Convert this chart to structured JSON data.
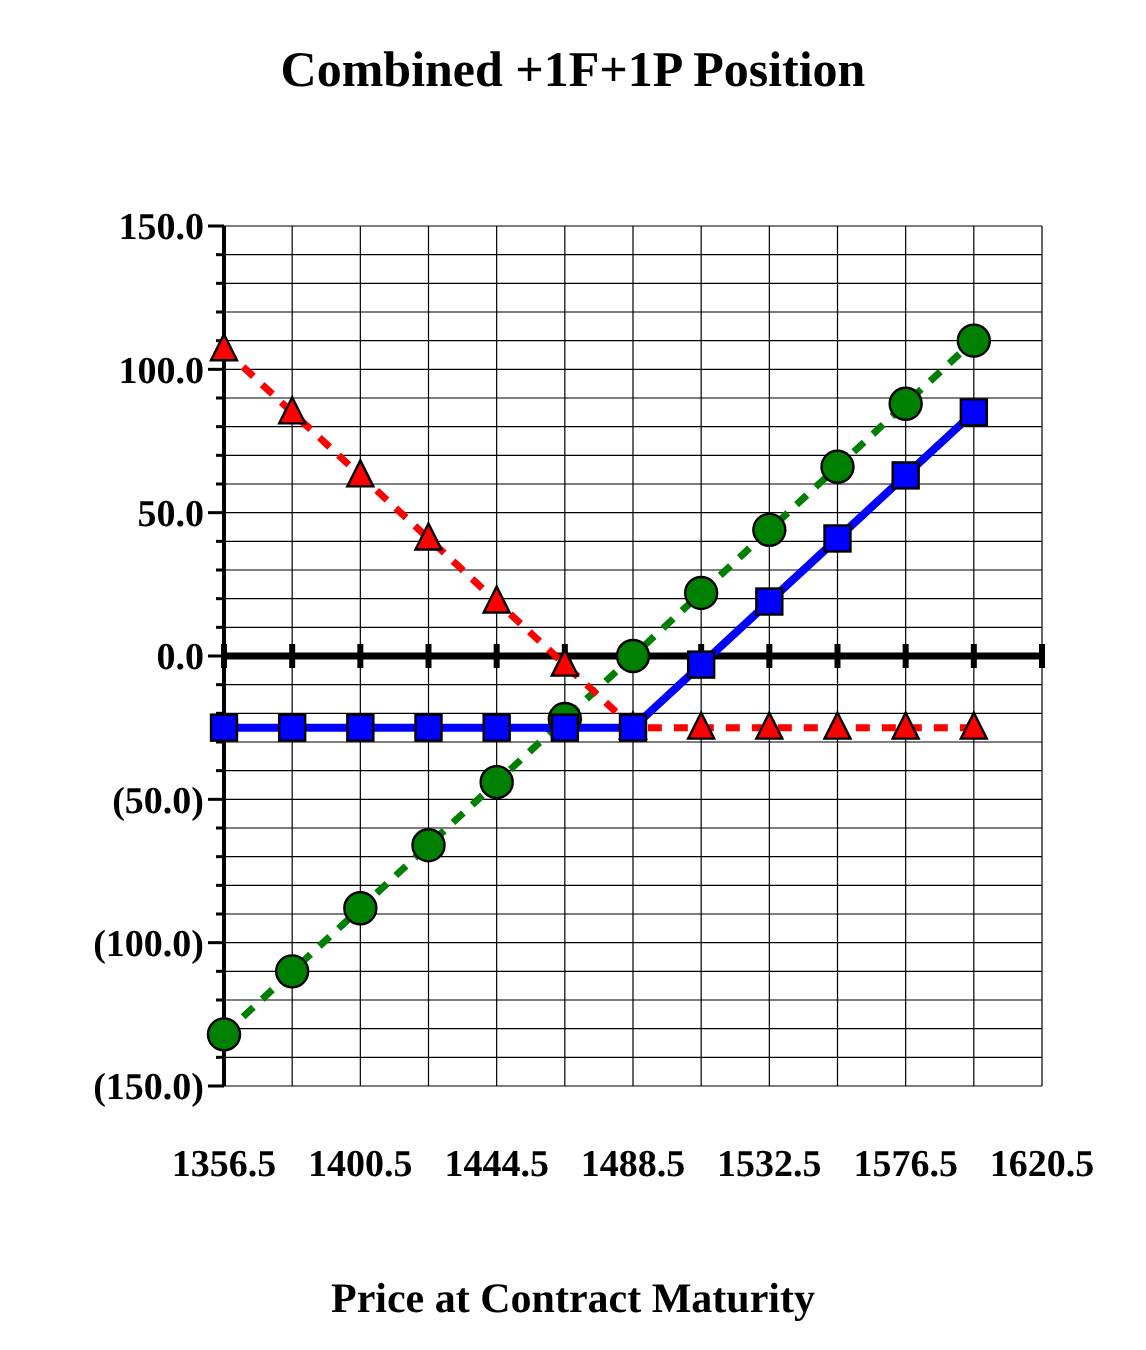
{
  "chart_data": {
    "type": "line",
    "title": "Combined +1F+1P Position",
    "xlabel": "Price at Contract Maturity",
    "xlim": [
      1356.5,
      1620.5
    ],
    "xticks": [
      1356.5,
      {
        "value": 1378.5,
        "label": null
      },
      1400.5,
      {
        "value": 1422.5,
        "label": null
      },
      1444.5,
      {
        "value": 1466.5,
        "label": null
      },
      1488.5,
      {
        "value": 1510.5,
        "label": null
      },
      1532.5,
      {
        "value": 1554.5,
        "label": null
      },
      1576.5,
      {
        "value": 1598.5,
        "label": null
      },
      1620.5
    ],
    "ylim": [
      -150,
      150
    ],
    "yticks": [
      {
        "value": -150,
        "label": "(150.0)"
      },
      {
        "value": -140,
        "label": null
      },
      {
        "value": -130,
        "label": null
      },
      {
        "value": -120,
        "label": null
      },
      {
        "value": -110,
        "label": null
      },
      {
        "value": -100,
        "label": "(100.0)"
      },
      {
        "value": -90,
        "label": null
      },
      {
        "value": -80,
        "label": null
      },
      {
        "value": -70,
        "label": null
      },
      {
        "value": -60,
        "label": null
      },
      {
        "value": -50,
        "label": "(50.0)"
      },
      {
        "value": -40,
        "label": null
      },
      {
        "value": -30,
        "label": null
      },
      {
        "value": -20,
        "label": null
      },
      {
        "value": -10,
        "label": null
      },
      {
        "value": 0,
        "label": "0.0"
      },
      {
        "value": 10,
        "label": null
      },
      {
        "value": 20,
        "label": null
      },
      {
        "value": 30,
        "label": null
      },
      {
        "value": 40,
        "label": null
      },
      {
        "value": 50,
        "label": "50.0"
      },
      {
        "value": 60,
        "label": null
      },
      {
        "value": 70,
        "label": null
      },
      {
        "value": 80,
        "label": null
      },
      {
        "value": 90,
        "label": null
      },
      {
        "value": 100,
        "label": "100.0"
      },
      {
        "value": 110,
        "label": null
      },
      {
        "value": 120,
        "label": null
      },
      {
        "value": 130,
        "label": null
      },
      {
        "value": 140,
        "label": null
      },
      {
        "value": 150,
        "label": "150.0"
      }
    ],
    "grid": true,
    "x": [
      1356.5,
      1378.5,
      1400.5,
      1422.5,
      1444.5,
      1466.5,
      1488.5,
      1510.5,
      1532.5,
      1554.5,
      1576.5,
      1598.5
    ],
    "series": [
      {
        "color": "#008000",
        "marker": "circle",
        "line_style": "dashed",
        "values": [
          -132,
          -110,
          -88,
          -66,
          -44,
          -22,
          0,
          22,
          44,
          66,
          88,
          110
        ]
      },
      {
        "color": "#ff0000",
        "marker": "triangle",
        "line_style": "dashed",
        "values": [
          107,
          85,
          63,
          41,
          19,
          -3,
          -25,
          -25,
          -25,
          -25,
          -25,
          -25
        ]
      },
      {
        "color": "#0000ff",
        "marker": "square",
        "line_style": "solid",
        "values": [
          -25,
          -25,
          -25,
          -25,
          -25,
          -25,
          -25,
          -3,
          19,
          41,
          63,
          85
        ]
      }
    ]
  }
}
